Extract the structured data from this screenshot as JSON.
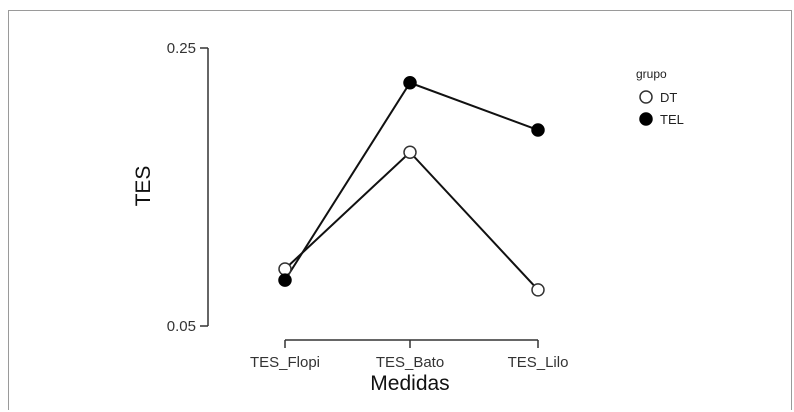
{
  "chart_data": {
    "type": "line",
    "title": "",
    "xlabel": "Medidas",
    "ylabel": "TES",
    "categories": [
      "TES_Flopi",
      "TES_Bato",
      "TES_Lilo"
    ],
    "yticks": [
      "0.25",
      "0.05"
    ],
    "ytick_values": [
      0.25,
      0.05
    ],
    "ylim": [
      0.05,
      0.25
    ],
    "legend_title": "grupo",
    "legend_position": "top-right",
    "grid": false,
    "series": [
      {
        "name": "DT",
        "values": [
          0.091,
          0.175,
          0.076
        ],
        "marker": "open-circle",
        "color": "#ffffff",
        "stroke": "#333333"
      },
      {
        "name": "TEL",
        "values": [
          0.083,
          0.225,
          0.191
        ],
        "marker": "filled-circle",
        "color": "#000000",
        "stroke": "#000000"
      }
    ]
  }
}
